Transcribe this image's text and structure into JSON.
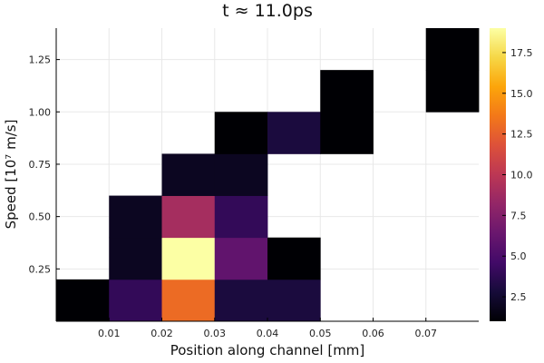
{
  "chart_data": {
    "type": "heatmap",
    "title": "t ≈ 11.0ps",
    "xlabel": "Position along channel [mm]",
    "ylabel": "Speed [10⁷ m/s]",
    "xlim": [
      0,
      0.08
    ],
    "ylim": [
      0,
      1.4
    ],
    "xticks": [
      "0.01",
      "0.02",
      "0.03",
      "0.04",
      "0.05",
      "0.06",
      "0.07"
    ],
    "xtick_values": [
      0.01,
      0.02,
      0.03,
      0.04,
      0.05,
      0.06,
      0.07
    ],
    "yticks": [
      "0.25",
      "0.50",
      "0.75",
      "1.00",
      "1.25"
    ],
    "ytick_values": [
      0.25,
      0.5,
      0.75,
      1.0,
      1.25
    ],
    "bin_width_x": 0.01,
    "bin_height_y": 0.2,
    "colormap": "inferno",
    "colorbar": {
      "min": 1,
      "max": 19,
      "ticks": [
        "2.5",
        "5.0",
        "7.5",
        "10.0",
        "12.5",
        "15.0",
        "17.5"
      ],
      "tick_values": [
        2.5,
        5.0,
        7.5,
        10.0,
        12.5,
        15.0,
        17.5
      ]
    },
    "grid": true,
    "cells": [
      {
        "x": 0.0,
        "y": 0.0,
        "value": 1
      },
      {
        "x": 0.01,
        "y": 0.0,
        "value": 4
      },
      {
        "x": 0.02,
        "y": 0.0,
        "value": 13
      },
      {
        "x": 0.03,
        "y": 0.0,
        "value": 3
      },
      {
        "x": 0.04,
        "y": 0.0,
        "value": 3
      },
      {
        "x": 0.01,
        "y": 0.2,
        "value": 2
      },
      {
        "x": 0.02,
        "y": 0.2,
        "value": 19
      },
      {
        "x": 0.03,
        "y": 0.2,
        "value": 6
      },
      {
        "x": 0.04,
        "y": 0.2,
        "value": 1
      },
      {
        "x": 0.01,
        "y": 0.4,
        "value": 2
      },
      {
        "x": 0.02,
        "y": 0.4,
        "value": 9
      },
      {
        "x": 0.03,
        "y": 0.4,
        "value": 4
      },
      {
        "x": 0.02,
        "y": 0.6,
        "value": 2
      },
      {
        "x": 0.03,
        "y": 0.6,
        "value": 2
      },
      {
        "x": 0.03,
        "y": 0.8,
        "value": 1
      },
      {
        "x": 0.04,
        "y": 0.8,
        "value": 3
      },
      {
        "x": 0.05,
        "y": 0.8,
        "value": 1
      },
      {
        "x": 0.05,
        "y": 1.0,
        "value": 1
      },
      {
        "x": 0.07,
        "y": 1.0,
        "value": 1
      },
      {
        "x": 0.07,
        "y": 1.2,
        "value": 1
      }
    ]
  }
}
